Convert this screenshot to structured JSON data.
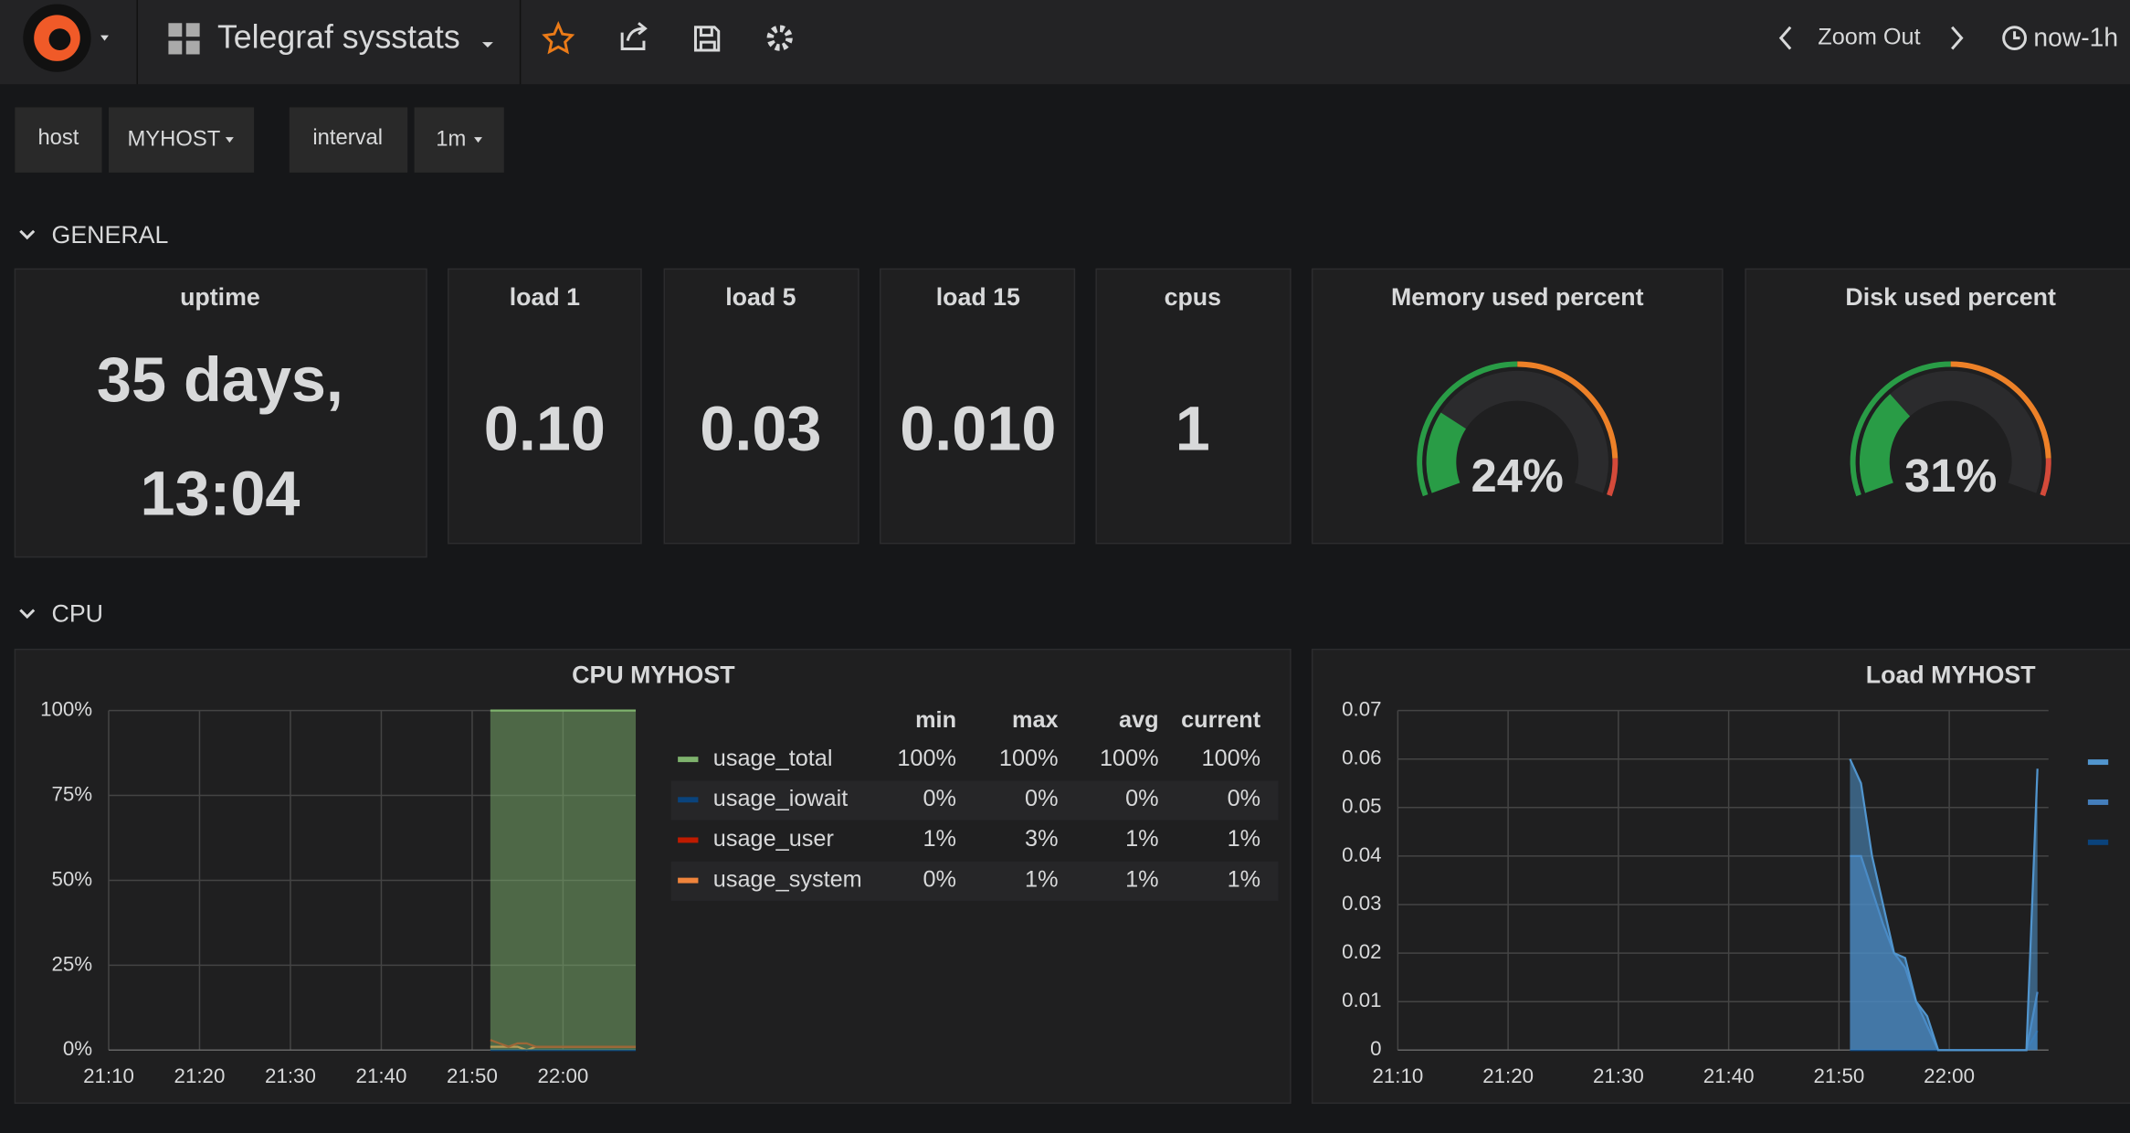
{
  "topbar": {
    "title": "Telegraf sysstats",
    "zoom": "Zoom Out",
    "time_range": "now-1h"
  },
  "variables": [
    {
      "name": "host",
      "value": "MYHOST"
    },
    {
      "name": "interval",
      "value": "1m"
    }
  ],
  "rows": [
    "GENERAL",
    "CPU"
  ],
  "stats": [
    {
      "title": "uptime",
      "value": [
        "35 days,",
        "13:04"
      ]
    },
    {
      "title": "load 1",
      "value": "0.10"
    },
    {
      "title": "load 5",
      "value": "0.03"
    },
    {
      "title": "load 15",
      "value": "0.010"
    },
    {
      "title": "cpus",
      "value": "1"
    }
  ],
  "gauges": [
    {
      "title": "Memory used percent",
      "value": 24,
      "label": "24%",
      "min": 0,
      "max": 100,
      "thresholds": [
        50,
        90
      ],
      "colors": [
        "#299c46",
        "#ed8128",
        "#d44a3a"
      ]
    },
    {
      "title": "Disk used percent",
      "value": 31,
      "label": "31%",
      "min": 0,
      "max": 100,
      "thresholds": [
        50,
        90
      ],
      "colors": [
        "#299c46",
        "#ed8128",
        "#d44a3a"
      ]
    }
  ],
  "chart_data": [
    {
      "type": "line",
      "title": "CPU MYHOST",
      "x": [
        "21:52",
        "21:53",
        "21:54",
        "21:55",
        "21:56",
        "21:57",
        "21:58",
        "21:59",
        "22:00",
        "22:01",
        "22:02",
        "22:03",
        "22:04",
        "22:05",
        "22:06",
        "22:07",
        "22:08"
      ],
      "xlim": [
        "21:10",
        "22:08"
      ],
      "xticks": [
        "21:10",
        "21:20",
        "21:30",
        "21:40",
        "21:50",
        "22:00"
      ],
      "ylim": [
        0,
        100
      ],
      "yticks": [
        {
          "value": 0,
          "label": "0%"
        },
        {
          "value": 25,
          "label": "25%"
        },
        {
          "value": 50,
          "label": "50%"
        },
        {
          "value": 75,
          "label": "75%"
        },
        {
          "value": 100,
          "label": "100%"
        }
      ],
      "grid": true,
      "legend_columns": [
        "min",
        "max",
        "avg",
        "current"
      ],
      "series": [
        {
          "name": "usage_total",
          "color": "#7eb26d",
          "fill": true,
          "values": [
            100,
            100,
            100,
            100,
            100,
            100,
            100,
            100,
            100,
            100,
            100,
            100,
            100,
            100,
            100,
            100,
            100
          ],
          "legend": [
            "100%",
            "100%",
            "100%",
            "100%"
          ]
        },
        {
          "name": "usage_iowait",
          "color": "#0a437c",
          "fill": false,
          "values": [
            0,
            0,
            0,
            0,
            0,
            0,
            0,
            0,
            0,
            0,
            0,
            0,
            0,
            0,
            0,
            0,
            0
          ],
          "legend": [
            "0%",
            "0%",
            "0%",
            "0%"
          ]
        },
        {
          "name": "usage_user",
          "color": "#bf1b00",
          "fill": false,
          "values": [
            3,
            2,
            1,
            2,
            2,
            1,
            1,
            1,
            1,
            1,
            1,
            1,
            1,
            1,
            1,
            1,
            1
          ],
          "legend": [
            "1%",
            "3%",
            "1%",
            "1%"
          ]
        },
        {
          "name": "usage_system",
          "color": "#ef843c",
          "fill": false,
          "values": [
            1,
            1,
            1,
            1,
            0,
            1,
            1,
            1,
            1,
            1,
            1,
            1,
            1,
            1,
            1,
            1,
            1
          ],
          "legend": [
            "0%",
            "1%",
            "1%",
            "1%"
          ]
        }
      ]
    },
    {
      "type": "line",
      "title": "Load MYHOST",
      "x": [
        "21:51",
        "21:52",
        "21:53",
        "21:54",
        "21:55",
        "21:56",
        "21:57",
        "21:58",
        "21:59",
        "22:00",
        "22:01",
        "22:02",
        "22:03",
        "22:04",
        "22:05",
        "22:06",
        "22:07",
        "22:08"
      ],
      "xlim": [
        "21:10",
        "22:09"
      ],
      "xticks": [
        "21:10",
        "21:20",
        "21:30",
        "21:40",
        "21:50",
        "22:00"
      ],
      "ylim": [
        0,
        0.07
      ],
      "yticks": [
        0,
        0.01,
        0.02,
        0.03,
        0.04,
        0.05,
        0.06,
        0.07
      ],
      "grid": true,
      "series": [
        {
          "color": "#5195ce",
          "fill": true,
          "values": [
            0.06,
            0.055,
            0.04,
            0.03,
            0.02,
            0.019,
            0.01,
            0.007,
            0,
            0,
            0,
            0,
            0,
            0,
            0,
            0,
            0,
            0.058
          ]
        },
        {
          "color": "#447ebc",
          "fill": true,
          "values": [
            0.04,
            0.04,
            0.033,
            0.026,
            0.02,
            0.017,
            0.01,
            0.005,
            0,
            0,
            0,
            0,
            0,
            0,
            0,
            0,
            0,
            0.012
          ]
        },
        {
          "color": "#0a437c",
          "fill": true,
          "values": [
            0,
            0,
            0,
            0,
            0,
            0,
            0,
            0,
            0,
            0,
            0,
            0,
            0,
            0,
            0,
            0,
            0,
            0.004
          ]
        }
      ]
    }
  ]
}
